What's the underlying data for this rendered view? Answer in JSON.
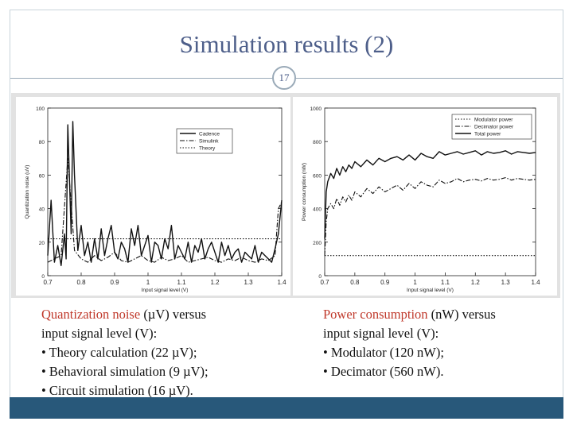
{
  "slide": {
    "title": "Simulation results (2)",
    "page_number": "17",
    "colors": {
      "title": "#4e5f8a",
      "highlight": "#c0392b",
      "bottom_bar": "#28587a",
      "rule": "#9aaab8"
    }
  },
  "captions": {
    "left": {
      "highlight": "Quantization noise",
      "rest": " (µV) versus",
      "line2": "input signal level (V):",
      "bullets": [
        "• Theory calculation (22 µV);",
        "• Behavioral simulation (9 µV);",
        "• Circuit simulation (16 µV)."
      ]
    },
    "right": {
      "highlight": "Power consumption",
      "rest": " (nW) versus",
      "line2": "input signal level (V):",
      "bullets": [
        "• Modulator (120 nW);",
        "• Decimator (560 nW)."
      ]
    }
  },
  "chart_data": [
    {
      "type": "line",
      "xlabel": "Input signal level (V)",
      "ylabel": "Quantization noise (uV)",
      "xlim": [
        0.7,
        1.4
      ],
      "ylim": [
        0,
        100
      ],
      "xticks": [
        0.7,
        0.8,
        0.9,
        1,
        1.1,
        1.2,
        1.3,
        1.4
      ],
      "xtick_labels": [
        "0.7",
        "0.8",
        "0.9",
        "1",
        "1.1",
        "1.2",
        "1.3",
        "1.4"
      ],
      "yticks": [
        0,
        20,
        40,
        60,
        80,
        100
      ],
      "ytick_labels": [
        "0",
        "20",
        "40",
        "60",
        "80",
        "100"
      ],
      "legend": "top-right",
      "series": [
        {
          "name": "Cadence",
          "style": "solid",
          "x": [
            0.7,
            0.71,
            0.72,
            0.73,
            0.74,
            0.75,
            0.755,
            0.76,
            0.77,
            0.775,
            0.78,
            0.79,
            0.8,
            0.81,
            0.82,
            0.83,
            0.84,
            0.85,
            0.86,
            0.87,
            0.88,
            0.89,
            0.9,
            0.91,
            0.92,
            0.93,
            0.94,
            0.95,
            0.96,
            0.97,
            0.98,
            0.99,
            1.0,
            1.01,
            1.02,
            1.03,
            1.04,
            1.05,
            1.06,
            1.07,
            1.08,
            1.09,
            1.1,
            1.11,
            1.12,
            1.13,
            1.14,
            1.15,
            1.16,
            1.17,
            1.18,
            1.19,
            1.2,
            1.21,
            1.22,
            1.23,
            1.24,
            1.25,
            1.26,
            1.27,
            1.28,
            1.29,
            1.3,
            1.31,
            1.32,
            1.33,
            1.34,
            1.35,
            1.36,
            1.37,
            1.38,
            1.39,
            1.4
          ],
          "y": [
            12,
            45,
            8,
            18,
            6,
            25,
            10,
            90,
            25,
            92,
            60,
            15,
            30,
            12,
            20,
            8,
            22,
            10,
            28,
            12,
            22,
            30,
            14,
            10,
            20,
            16,
            8,
            28,
            18,
            30,
            12,
            18,
            24,
            8,
            20,
            18,
            10,
            22,
            16,
            30,
            10,
            18,
            14,
            10,
            20,
            8,
            18,
            14,
            22,
            10,
            16,
            20,
            14,
            8,
            20,
            12,
            18,
            10,
            14,
            16,
            8,
            14,
            12,
            10,
            18,
            8,
            14,
            12,
            10,
            8,
            16,
            25,
            45
          ]
        },
        {
          "name": "Simulink",
          "style": "dashdot",
          "x": [
            0.7,
            0.72,
            0.74,
            0.76,
            0.78,
            0.8,
            0.82,
            0.84,
            0.86,
            0.88,
            0.9,
            0.92,
            0.94,
            0.96,
            0.98,
            1.0,
            1.02,
            1.04,
            1.06,
            1.08,
            1.1,
            1.12,
            1.14,
            1.16,
            1.18,
            1.2,
            1.22,
            1.24,
            1.26,
            1.28,
            1.3,
            1.32,
            1.34,
            1.36,
            1.38,
            1.39,
            1.4
          ],
          "y": [
            8,
            10,
            12,
            70,
            15,
            10,
            8,
            12,
            9,
            11,
            14,
            9,
            8,
            10,
            12,
            9,
            8,
            11,
            9,
            10,
            12,
            8,
            9,
            10,
            11,
            9,
            8,
            10,
            9,
            11,
            9,
            8,
            10,
            9,
            12,
            40,
            44
          ]
        },
        {
          "name": "Theory",
          "style": "dotted",
          "x": [
            0.7,
            1.4
          ],
          "y": [
            22,
            22
          ]
        }
      ]
    },
    {
      "type": "line",
      "xlabel": "Input signal level (V)",
      "ylabel": "Power consumption (nW)",
      "xlim": [
        0.7,
        1.4
      ],
      "ylim": [
        0,
        1000
      ],
      "xticks": [
        0.7,
        0.8,
        0.9,
        1,
        1.1,
        1.2,
        1.3,
        1.4
      ],
      "xtick_labels": [
        "0.7",
        "0.8",
        "0.9",
        "1",
        "1.1",
        "1.2",
        "1.3",
        "1.4"
      ],
      "yticks": [
        0,
        200,
        400,
        600,
        800,
        1000
      ],
      "ytick_labels": [
        "0",
        "200",
        "400",
        "600",
        "800",
        "1000"
      ],
      "legend": "top-right",
      "series": [
        {
          "name": "Modulator power",
          "style": "dotted",
          "x": [
            0.7,
            1.4
          ],
          "y": [
            120,
            120
          ]
        },
        {
          "name": "Decimator power",
          "style": "dashdot",
          "x": [
            0.7,
            0.705,
            0.71,
            0.72,
            0.73,
            0.74,
            0.75,
            0.76,
            0.77,
            0.78,
            0.79,
            0.8,
            0.82,
            0.84,
            0.86,
            0.88,
            0.9,
            0.92,
            0.94,
            0.96,
            0.98,
            1.0,
            1.02,
            1.04,
            1.06,
            1.08,
            1.1,
            1.12,
            1.14,
            1.16,
            1.18,
            1.2,
            1.22,
            1.24,
            1.26,
            1.28,
            1.3,
            1.32,
            1.34,
            1.36,
            1.38,
            1.4
          ],
          "y": [
            120,
            320,
            400,
            430,
            400,
            460,
            420,
            470,
            440,
            480,
            450,
            500,
            470,
            520,
            490,
            530,
            500,
            520,
            540,
            510,
            550,
            520,
            560,
            540,
            530,
            570,
            550,
            560,
            580,
            560,
            570,
            575,
            565,
            580,
            570,
            575,
            585,
            570,
            580,
            575,
            570,
            575
          ]
        },
        {
          "name": "Total power",
          "style": "solid",
          "x": [
            0.7,
            0.705,
            0.71,
            0.72,
            0.73,
            0.74,
            0.75,
            0.76,
            0.77,
            0.78,
            0.79,
            0.8,
            0.82,
            0.84,
            0.86,
            0.88,
            0.9,
            0.92,
            0.94,
            0.96,
            0.98,
            1.0,
            1.02,
            1.04,
            1.06,
            1.08,
            1.1,
            1.12,
            1.14,
            1.16,
            1.18,
            1.2,
            1.22,
            1.24,
            1.26,
            1.28,
            1.3,
            1.32,
            1.34,
            1.36,
            1.38,
            1.4
          ],
          "y": [
            220,
            500,
            560,
            610,
            580,
            640,
            600,
            650,
            620,
            660,
            640,
            680,
            650,
            690,
            660,
            700,
            680,
            700,
            710,
            690,
            720,
            690,
            730,
            710,
            700,
            740,
            720,
            730,
            740,
            725,
            735,
            745,
            720,
            740,
            730,
            735,
            745,
            725,
            740,
            735,
            730,
            735
          ]
        }
      ]
    }
  ]
}
